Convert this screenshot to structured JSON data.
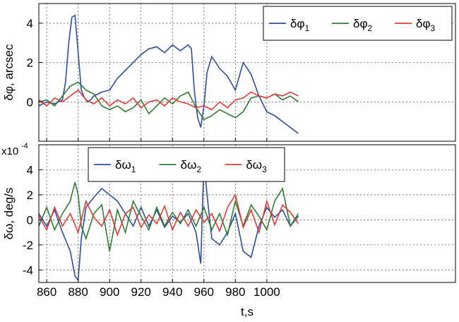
{
  "chart_data": [
    {
      "type": "line",
      "ylabel": "δφ, arcsec",
      "xlim": [
        855,
        1120
      ],
      "ylim": [
        -2,
        5
      ],
      "xticks": [
        860,
        880,
        900,
        920,
        940,
        960,
        980,
        1000
      ],
      "yticks": [
        0,
        2,
        4
      ],
      "grid": true,
      "legend_position": "top-right",
      "series": [
        {
          "name": "δφ1",
          "color": "#2b4ea2",
          "x": [
            855,
            860,
            865,
            870,
            872,
            874,
            876,
            878,
            880,
            882,
            884,
            886,
            888,
            890,
            895,
            900,
            905,
            910,
            915,
            920,
            925,
            930,
            935,
            940,
            945,
            950,
            952,
            954,
            956,
            958,
            960,
            962,
            965,
            970,
            975,
            980,
            985,
            990,
            995,
            1000,
            1005,
            1010,
            1015,
            1020
          ],
          "y": [
            -0.2,
            0.0,
            -0.1,
            0.1,
            1.0,
            3.0,
            4.3,
            4.4,
            2.5,
            0.6,
            0.2,
            0.0,
            0.1,
            0.3,
            0.5,
            0.6,
            1.2,
            1.6,
            2.0,
            2.4,
            2.7,
            2.8,
            2.5,
            2.9,
            2.6,
            2.9,
            2.7,
            0.5,
            -0.8,
            -1.3,
            -0.2,
            1.5,
            2.3,
            1.7,
            1.3,
            0.6,
            2.0,
            1.4,
            0.3,
            -0.5,
            -0.7,
            -1.0,
            -1.3,
            -1.6
          ]
        },
        {
          "name": "δφ2",
          "color": "#2e7d32",
          "x": [
            855,
            860,
            865,
            870,
            875,
            880,
            885,
            890,
            895,
            900,
            905,
            910,
            915,
            920,
            925,
            930,
            935,
            940,
            945,
            950,
            955,
            960,
            965,
            970,
            975,
            980,
            985,
            990,
            995,
            1000,
            1005,
            1010,
            1015,
            1020
          ],
          "y": [
            0.0,
            0.1,
            -0.2,
            0.3,
            0.8,
            1.0,
            0.6,
            0.4,
            -0.2,
            -0.4,
            -0.2,
            -0.5,
            -0.3,
            0.1,
            -0.6,
            -0.2,
            0.2,
            -0.1,
            0.3,
            0.5,
            -0.3,
            -0.9,
            -0.7,
            -0.4,
            -0.6,
            -0.8,
            -0.5,
            0.2,
            0.3,
            0.2,
            0.4,
            0.1,
            0.3,
            0.0
          ]
        },
        {
          "name": "δφ3",
          "color": "#e53935",
          "x": [
            855,
            860,
            865,
            870,
            875,
            880,
            885,
            890,
            895,
            900,
            905,
            910,
            915,
            920,
            925,
            930,
            935,
            940,
            945,
            950,
            955,
            960,
            965,
            970,
            975,
            980,
            985,
            990,
            995,
            1000,
            1005,
            1010,
            1015,
            1020
          ],
          "y": [
            0.1,
            -0.2,
            0.2,
            0.0,
            0.3,
            0.6,
            0.1,
            -0.1,
            0.2,
            -0.2,
            0.1,
            -0.1,
            0.2,
            -0.3,
            0.0,
            0.1,
            -0.2,
            0.2,
            0.0,
            -0.1,
            -0.3,
            -0.2,
            -0.4,
            0.0,
            -0.3,
            0.1,
            0.2,
            0.5,
            0.3,
            0.2,
            0.4,
            0.3,
            0.5,
            0.3
          ]
        }
      ]
    },
    {
      "type": "line",
      "ylabel": "δω, deg/s",
      "xlabel": "t,s",
      "scale_note": "x10",
      "scale_exponent": "-4",
      "xlim": [
        855,
        1120
      ],
      "ylim": [
        -5,
        6
      ],
      "xticks": [
        860,
        880,
        900,
        920,
        940,
        960,
        980,
        1000
      ],
      "yticks": [
        -4,
        -2,
        0,
        2,
        4
      ],
      "grid": true,
      "legend_position": "top-left",
      "series": [
        {
          "name": "δω1",
          "color": "#2b4ea2",
          "x": [
            855,
            860,
            865,
            870,
            875,
            878,
            880,
            882,
            885,
            890,
            895,
            900,
            905,
            910,
            915,
            920,
            925,
            930,
            935,
            940,
            945,
            950,
            955,
            958,
            960,
            962,
            965,
            970,
            975,
            980,
            985,
            990,
            995,
            1000,
            1005,
            1010,
            1015,
            1020
          ],
          "y": [
            0.5,
            -0.5,
            0.8,
            -1.0,
            -2.5,
            -4.5,
            -4.8,
            -1.5,
            1.0,
            1.8,
            2.5,
            2.0,
            1.5,
            0.5,
            -0.5,
            1.0,
            -0.5,
            0.8,
            -0.6,
            0.3,
            -0.2,
            0.5,
            -1.0,
            -3.5,
            4.8,
            2.0,
            -1.5,
            -2.0,
            -1.0,
            0.5,
            -2.5,
            -3.0,
            -0.5,
            1.0,
            0.2,
            0.8,
            -0.5,
            0.3
          ]
        },
        {
          "name": "δω2",
          "color": "#2e7d32",
          "x": [
            855,
            860,
            865,
            870,
            875,
            878,
            880,
            882,
            885,
            890,
            895,
            900,
            905,
            910,
            915,
            920,
            925,
            930,
            935,
            940,
            945,
            950,
            955,
            960,
            965,
            970,
            975,
            980,
            985,
            990,
            995,
            1000,
            1005,
            1010,
            1015,
            1020
          ],
          "y": [
            -0.5,
            1.0,
            -0.8,
            0.5,
            1.5,
            3.0,
            2.0,
            -0.5,
            -1.5,
            0.5,
            1.2,
            -2.5,
            0.8,
            -1.0,
            1.5,
            0.3,
            -0.8,
            1.0,
            -0.5,
            0.6,
            -0.3,
            0.8,
            -0.5,
            1.0,
            -0.8,
            0.5,
            -1.2,
            1.5,
            -0.5,
            1.2,
            0.3,
            -0.8,
            1.5,
            2.5,
            -0.5,
            0.5
          ]
        },
        {
          "name": "δω3",
          "color": "#e53935",
          "x": [
            855,
            860,
            865,
            870,
            875,
            880,
            885,
            890,
            895,
            900,
            905,
            910,
            915,
            920,
            925,
            930,
            935,
            940,
            945,
            950,
            955,
            960,
            965,
            970,
            975,
            980,
            985,
            990,
            995,
            1000,
            1005,
            1010,
            1015,
            1020
          ],
          "y": [
            0.3,
            -0.8,
            1.0,
            -0.5,
            0.5,
            -1.0,
            1.5,
            0.2,
            -0.5,
            0.8,
            -1.2,
            0.5,
            1.0,
            -0.6,
            0.4,
            -0.3,
            1.1,
            -0.8,
            0.6,
            -0.5,
            0.8,
            -0.2,
            0.5,
            -0.9,
            1.0,
            2.0,
            -0.6,
            0.8,
            -1.0,
            1.5,
            -0.4,
            1.2,
            0.6,
            -0.3
          ]
        }
      ]
    }
  ]
}
